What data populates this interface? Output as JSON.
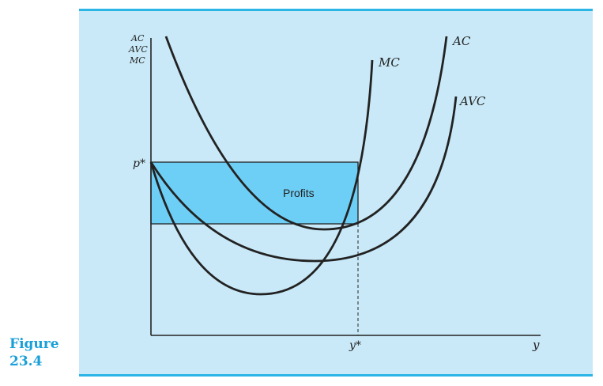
{
  "figure": {
    "caption_word": "Figure",
    "caption_number": "23.4"
  },
  "axes": {
    "y_axis_label_lines": [
      "AC",
      "AVC",
      "MC"
    ],
    "x_axis_label": "y",
    "price_label": "p*",
    "quantity_label": "y*"
  },
  "curves": {
    "ac_label": "AC",
    "avc_label": "AVC",
    "mc_label": "MC"
  },
  "region": {
    "profits_label": "Profits"
  },
  "colors": {
    "panel_background": "#c9e9f8",
    "accent_rule": "#2bb5e6",
    "profit_fill": "#6dcff5",
    "caption": "#1aa0d8",
    "curve_stroke": "#222222"
  }
}
